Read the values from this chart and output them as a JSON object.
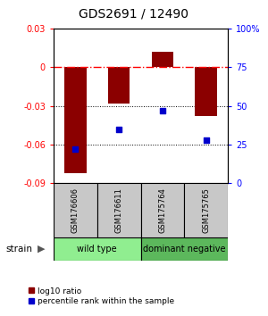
{
  "title": "GDS2691 / 12490",
  "samples": [
    "GSM176606",
    "GSM176611",
    "GSM175764",
    "GSM175765"
  ],
  "log10_ratios": [
    -0.082,
    -0.028,
    0.012,
    -0.038
  ],
  "percentile_ranks": [
    22,
    35,
    47,
    28
  ],
  "ylim_left": [
    -0.09,
    0.03
  ],
  "ylim_right": [
    0,
    100
  ],
  "yticks_left": [
    0.03,
    0.0,
    -0.03,
    -0.06,
    -0.09
  ],
  "yticks_right": [
    100,
    75,
    50,
    25,
    0
  ],
  "bar_color": "#8B0000",
  "scatter_color": "#0000CC",
  "sample_box_color": "#C8C8C8",
  "bar_width": 0.5,
  "group_labels": [
    "wild type",
    "dominant negative"
  ],
  "group_colors": [
    "#90EE90",
    "#5CB85C"
  ],
  "strain_label": "strain"
}
